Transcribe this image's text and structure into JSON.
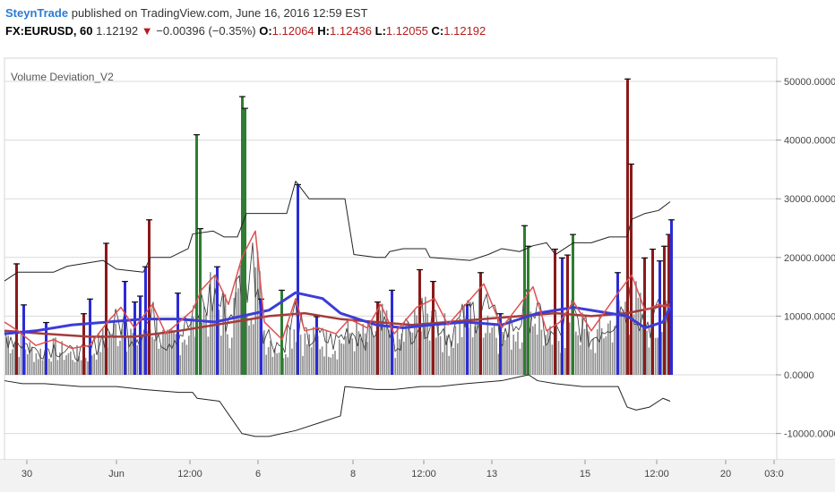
{
  "header": {
    "author": "SteynTrade",
    "published_text": "published on TradingView.com, June 16, 2016 12:59 EST",
    "symbol": "FX:EURUSD, 60",
    "last_price": "1.12192",
    "arrow": "▼",
    "change": "−0.00396 (−0.35%)",
    "open_label": "O:",
    "open": "1.12064",
    "high_label": "H:",
    "high": "1.12436",
    "low_label": "L:",
    "low": "1.12055",
    "close_label": "C:",
    "close": "1.12192"
  },
  "chart_data": {
    "type": "bar",
    "title": "Volume Deviation_V2",
    "ylim": [
      -15000,
      53000
    ],
    "y_ticks": [
      50000,
      40000,
      30000,
      20000,
      10000,
      0,
      -10000
    ],
    "y_tick_labels": [
      "50000.0000",
      "40000.0000",
      "30000.0000",
      "20000.0000",
      "10000.0000",
      "0.0000",
      "-10000.0000"
    ],
    "x_tick_labels": [
      "30",
      "Jun",
      "12:00",
      "6",
      "8",
      "12:00",
      "13",
      "15",
      "12:00",
      "20",
      "03:0"
    ],
    "grid": true,
    "colors": {
      "volume": "#8c8c8c",
      "up_spike": "#2e7d32",
      "down_spike": "#8b1a1a",
      "blue_spike": "#2b2bd6",
      "bands": "#222222",
      "fast_ma": "#e05050",
      "slow_ma_red": "#a33c3c",
      "slow_ma_blue": "#3c3cd8"
    },
    "spikes": [
      {
        "x": 17,
        "y": 19000,
        "color": "down"
      },
      {
        "x": 25,
        "y": 12000,
        "color": "blue"
      },
      {
        "x": 50,
        "y": 9000,
        "color": "blue"
      },
      {
        "x": 92,
        "y": 10500,
        "color": "down"
      },
      {
        "x": 99,
        "y": 13000,
        "color": "blue"
      },
      {
        "x": 117,
        "y": 22500,
        "color": "down"
      },
      {
        "x": 138,
        "y": 16000,
        "color": "blue"
      },
      {
        "x": 149,
        "y": 12500,
        "color": "blue"
      },
      {
        "x": 155,
        "y": 13500,
        "color": "blue"
      },
      {
        "x": 161,
        "y": 18500,
        "color": "blue"
      },
      {
        "x": 165,
        "y": 26500,
        "color": "down"
      },
      {
        "x": 197,
        "y": 14000,
        "color": "blue"
      },
      {
        "x": 218,
        "y": 41000,
        "color": "up"
      },
      {
        "x": 222,
        "y": 25000,
        "color": "up"
      },
      {
        "x": 241,
        "y": 18500,
        "color": "blue"
      },
      {
        "x": 269,
        "y": 47500,
        "color": "up"
      },
      {
        "x": 272,
        "y": 45500,
        "color": "up"
      },
      {
        "x": 290,
        "y": 13000,
        "color": "blue"
      },
      {
        "x": 313,
        "y": 14500,
        "color": "up"
      },
      {
        "x": 331,
        "y": 32500,
        "color": "blue"
      },
      {
        "x": 352,
        "y": 10000,
        "color": "blue"
      },
      {
        "x": 420,
        "y": 12500,
        "color": "down"
      },
      {
        "x": 436,
        "y": 14500,
        "color": "blue"
      },
      {
        "x": 467,
        "y": 18000,
        "color": "down"
      },
      {
        "x": 482,
        "y": 16000,
        "color": "down"
      },
      {
        "x": 520,
        "y": 12000,
        "color": "blue"
      },
      {
        "x": 535,
        "y": 17500,
        "color": "down"
      },
      {
        "x": 557,
        "y": 10500,
        "color": "blue"
      },
      {
        "x": 584,
        "y": 25500,
        "color": "up"
      },
      {
        "x": 588,
        "y": 22000,
        "color": "up"
      },
      {
        "x": 618,
        "y": 21500,
        "color": "down"
      },
      {
        "x": 626,
        "y": 20000,
        "color": "blue"
      },
      {
        "x": 632,
        "y": 20500,
        "color": "down"
      },
      {
        "x": 638,
        "y": 24000,
        "color": "up"
      },
      {
        "x": 688,
        "y": 17500,
        "color": "blue"
      },
      {
        "x": 699,
        "y": 50500,
        "color": "down"
      },
      {
        "x": 703,
        "y": 36000,
        "color": "down"
      },
      {
        "x": 718,
        "y": 20000,
        "color": "down"
      },
      {
        "x": 727,
        "y": 21500,
        "color": "down"
      },
      {
        "x": 735,
        "y": 19500,
        "color": "blue"
      },
      {
        "x": 740,
        "y": 22000,
        "color": "down"
      },
      {
        "x": 745,
        "y": 24000,
        "color": "down"
      },
      {
        "x": 748,
        "y": 26500,
        "color": "blue"
      }
    ],
    "upper_band": [
      [
        5,
        16000
      ],
      [
        20,
        17500
      ],
      [
        60,
        17500
      ],
      [
        75,
        18500
      ],
      [
        115,
        19500
      ],
      [
        130,
        18000
      ],
      [
        160,
        17500
      ],
      [
        168,
        20000
      ],
      [
        190,
        20000
      ],
      [
        210,
        21500
      ],
      [
        215,
        24000
      ],
      [
        238,
        24500
      ],
      [
        250,
        23500
      ],
      [
        265,
        23500
      ],
      [
        275,
        27500
      ],
      [
        300,
        27500
      ],
      [
        320,
        27500
      ],
      [
        330,
        33000
      ],
      [
        345,
        30000
      ],
      [
        385,
        30000
      ],
      [
        395,
        20500
      ],
      [
        420,
        20000
      ],
      [
        430,
        20000
      ],
      [
        435,
        21000
      ],
      [
        450,
        21500
      ],
      [
        475,
        21500
      ],
      [
        480,
        20000
      ],
      [
        525,
        19500
      ],
      [
        545,
        20500
      ],
      [
        560,
        21500
      ],
      [
        580,
        21000
      ],
      [
        595,
        22000
      ],
      [
        610,
        22500
      ],
      [
        620,
        20500
      ],
      [
        630,
        21500
      ],
      [
        640,
        22500
      ],
      [
        660,
        22500
      ],
      [
        680,
        23500
      ],
      [
        700,
        23500
      ],
      [
        705,
        26500
      ],
      [
        720,
        27500
      ],
      [
        735,
        28000
      ],
      [
        748,
        29500
      ]
    ],
    "lower_band": [
      [
        5,
        -1000
      ],
      [
        25,
        -1500
      ],
      [
        50,
        -1500
      ],
      [
        90,
        -2000
      ],
      [
        130,
        -2000
      ],
      [
        160,
        -2500
      ],
      [
        200,
        -3000
      ],
      [
        215,
        -3000
      ],
      [
        220,
        -4000
      ],
      [
        245,
        -4500
      ],
      [
        270,
        -10000
      ],
      [
        285,
        -10500
      ],
      [
        300,
        -10500
      ],
      [
        330,
        -9500
      ],
      [
        360,
        -8000
      ],
      [
        380,
        -7000
      ],
      [
        385,
        -2000
      ],
      [
        420,
        -2500
      ],
      [
        440,
        -2500
      ],
      [
        470,
        -2000
      ],
      [
        490,
        -2000
      ],
      [
        520,
        -1500
      ],
      [
        560,
        -1000
      ],
      [
        575,
        -500
      ],
      [
        590,
        0
      ],
      [
        600,
        -1000
      ],
      [
        620,
        -1500
      ],
      [
        650,
        -2000
      ],
      [
        690,
        -2000
      ],
      [
        700,
        -5500
      ],
      [
        710,
        -6000
      ],
      [
        725,
        -5500
      ],
      [
        740,
        -4000
      ],
      [
        748,
        -4500
      ]
    ],
    "fast_ma": [
      [
        5,
        9000
      ],
      [
        20,
        7500
      ],
      [
        40,
        5000
      ],
      [
        60,
        6000
      ],
      [
        80,
        4500
      ],
      [
        100,
        5000
      ],
      [
        120,
        9000
      ],
      [
        135,
        11500
      ],
      [
        150,
        8000
      ],
      [
        170,
        12000
      ],
      [
        185,
        7000
      ],
      [
        200,
        9000
      ],
      [
        215,
        11000
      ],
      [
        225,
        14500
      ],
      [
        240,
        17000
      ],
      [
        255,
        12000
      ],
      [
        270,
        20000
      ],
      [
        285,
        24500
      ],
      [
        295,
        9000
      ],
      [
        315,
        6000
      ],
      [
        330,
        13000
      ],
      [
        340,
        7500
      ],
      [
        355,
        8000
      ],
      [
        375,
        7000
      ],
      [
        390,
        9500
      ],
      [
        410,
        8000
      ],
      [
        425,
        12000
      ],
      [
        440,
        7000
      ],
      [
        465,
        11500
      ],
      [
        485,
        13000
      ],
      [
        500,
        8500
      ],
      [
        520,
        12000
      ],
      [
        540,
        15500
      ],
      [
        560,
        8000
      ],
      [
        580,
        12000
      ],
      [
        595,
        15000
      ],
      [
        610,
        7500
      ],
      [
        625,
        9000
      ],
      [
        640,
        12500
      ],
      [
        660,
        7500
      ],
      [
        690,
        14000
      ],
      [
        705,
        17000
      ],
      [
        720,
        11000
      ],
      [
        735,
        12000
      ],
      [
        748,
        11500
      ]
    ],
    "slow_ma_red": [
      [
        5,
        7500
      ],
      [
        50,
        7000
      ],
      [
        100,
        6500
      ],
      [
        150,
        6500
      ],
      [
        200,
        7500
      ],
      [
        260,
        9000
      ],
      [
        300,
        10000
      ],
      [
        340,
        10500
      ],
      [
        380,
        9500
      ],
      [
        420,
        9000
      ],
      [
        460,
        8500
      ],
      [
        500,
        9000
      ],
      [
        540,
        9500
      ],
      [
        580,
        10000
      ],
      [
        620,
        10500
      ],
      [
        660,
        10000
      ],
      [
        700,
        10500
      ],
      [
        748,
        12000
      ]
    ],
    "slow_ma_blue": [
      [
        5,
        7000
      ],
      [
        40,
        7500
      ],
      [
        80,
        8500
      ],
      [
        120,
        9000
      ],
      [
        160,
        9500
      ],
      [
        200,
        9500
      ],
      [
        240,
        9000
      ],
      [
        270,
        10000
      ],
      [
        300,
        11000
      ],
      [
        330,
        14000
      ],
      [
        360,
        13000
      ],
      [
        380,
        10500
      ],
      [
        420,
        8500
      ],
      [
        450,
        8000
      ],
      [
        480,
        8500
      ],
      [
        520,
        9000
      ],
      [
        560,
        8500
      ],
      [
        600,
        10500
      ],
      [
        640,
        11500
      ],
      [
        680,
        10500
      ],
      [
        700,
        10000
      ],
      [
        720,
        8000
      ],
      [
        740,
        9000
      ],
      [
        748,
        11500
      ]
    ]
  }
}
